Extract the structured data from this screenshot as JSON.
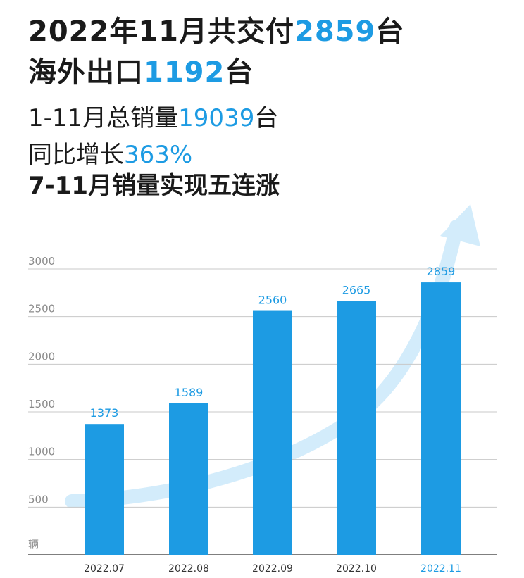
{
  "headline": {
    "line1": {
      "prefix": "2022年11月共交付",
      "value": "2859",
      "suffix": "台"
    },
    "line2": {
      "prefix": "海外出口",
      "value": "1192",
      "suffix": "台"
    },
    "line3": {
      "prefix": "1-11月总销量",
      "value": "19039",
      "suffix": "台"
    },
    "line4": {
      "prefix": "同比增长",
      "value": "363%"
    },
    "line5": "7-11月销量实现五连涨"
  },
  "colors": {
    "bar": "#1d9be3",
    "label": "#1d9be3",
    "arrow": "#d3ecfb",
    "grid": "#c8c8c8",
    "tick": "#8a8a8a",
    "highlight_category": "#1d9be3"
  },
  "chart_data": {
    "type": "bar",
    "categories": [
      "2022.07",
      "2022.08",
      "2022.09",
      "2022.10",
      "2022.11"
    ],
    "values": [
      1373,
      1589,
      2560,
      2665,
      2859
    ],
    "y_ticks": [
      500,
      1000,
      1500,
      2000,
      2500,
      3000
    ],
    "ylim": [
      0,
      3000
    ],
    "ylabel": "辆",
    "grid": true,
    "highlighted_category": "2022.11",
    "trend_arrow": true
  }
}
